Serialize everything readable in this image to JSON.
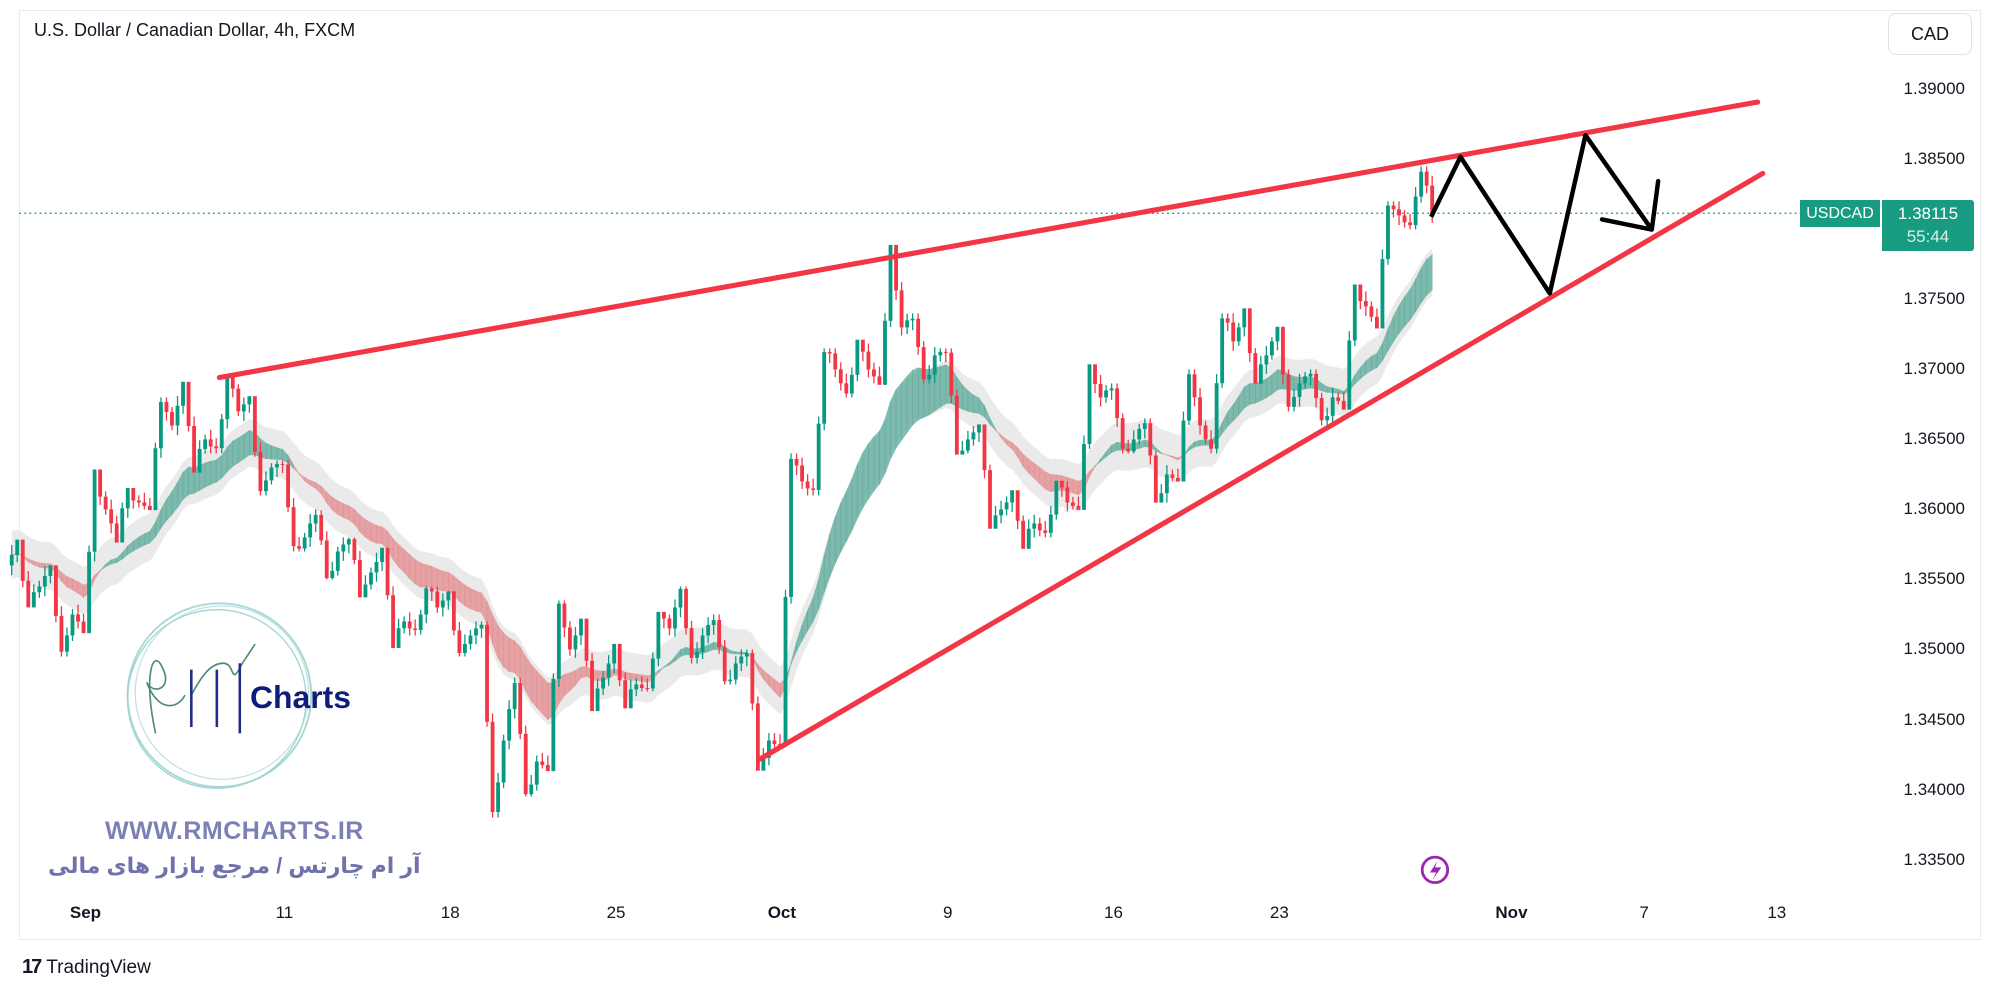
{
  "header": {
    "title": "U.S. Dollar / Canadian Dollar, 4h, FXCM",
    "currency_button": "CAD"
  },
  "last_price": {
    "symbol": "USDCAD",
    "price": "1.38115",
    "countdown": "55:44"
  },
  "watermark": {
    "logo_text": "RM Charts",
    "website": "WWW.RMCHARTS.IR",
    "tagline": "آر ام چارتس / مرجع بازار های مالی"
  },
  "footer": {
    "brand": "TradingView"
  },
  "colors": {
    "up": "#089981",
    "down": "#f23645",
    "trendline": "#f23645",
    "projection": "#000000",
    "badge": "#179b81",
    "ribbon_up": "#5aa99a",
    "ribbon_down": "#e48a8d",
    "band": "#e3e3e3"
  },
  "chart_data": {
    "type": "candlestick",
    "timeframe": "4h",
    "ylim": [
      1.332,
      1.3925
    ],
    "y_ticks": [
      "1.39000",
      "1.38500",
      "1.38000",
      "1.37500",
      "1.37000",
      "1.36500",
      "1.36000",
      "1.35500",
      "1.35000",
      "1.34500",
      "1.34000",
      "1.33500"
    ],
    "x_ticks": [
      "Sep",
      "11",
      "18",
      "25",
      "Oct",
      "9",
      "16",
      "23",
      "Nov",
      "7",
      "13"
    ],
    "daily_ohlc": [
      {
        "date": "Aug 30",
        "o": 1.356,
        "h": 1.3575,
        "l": 1.353,
        "c": 1.3545
      },
      {
        "date": "Aug 31",
        "o": 1.3545,
        "h": 1.356,
        "l": 1.3495,
        "c": 1.3525
      },
      {
        "date": "Sep 1",
        "o": 1.3525,
        "h": 1.3625,
        "l": 1.3515,
        "c": 1.36
      },
      {
        "date": "Sep 4",
        "o": 1.36,
        "h": 1.3615,
        "l": 1.358,
        "c": 1.3605
      },
      {
        "date": "Sep 5",
        "o": 1.3605,
        "h": 1.368,
        "l": 1.36,
        "c": 1.366
      },
      {
        "date": "Sep 6",
        "o": 1.366,
        "h": 1.3688,
        "l": 1.363,
        "c": 1.365
      },
      {
        "date": "Sep 7",
        "o": 1.365,
        "h": 1.3695,
        "l": 1.364,
        "c": 1.367
      },
      {
        "date": "Sep 8",
        "o": 1.367,
        "h": 1.368,
        "l": 1.361,
        "c": 1.363
      },
      {
        "date": "Sep 11",
        "o": 1.363,
        "h": 1.3635,
        "l": 1.357,
        "c": 1.358
      },
      {
        "date": "Sep 12",
        "o": 1.358,
        "h": 1.36,
        "l": 1.355,
        "c": 1.357
      },
      {
        "date": "Sep 13",
        "o": 1.357,
        "h": 1.358,
        "l": 1.354,
        "c": 1.3555
      },
      {
        "date": "Sep 14",
        "o": 1.3555,
        "h": 1.357,
        "l": 1.3505,
        "c": 1.352
      },
      {
        "date": "Sep 15",
        "o": 1.352,
        "h": 1.3545,
        "l": 1.351,
        "c": 1.353
      },
      {
        "date": "Sep 18",
        "o": 1.353,
        "h": 1.354,
        "l": 1.3495,
        "c": 1.351
      },
      {
        "date": "Sep 19",
        "o": 1.351,
        "h": 1.352,
        "l": 1.338,
        "c": 1.3435
      },
      {
        "date": "Sep 20",
        "o": 1.3435,
        "h": 1.348,
        "l": 1.3395,
        "c": 1.342
      },
      {
        "date": "Sep 21",
        "o": 1.342,
        "h": 1.3535,
        "l": 1.3415,
        "c": 1.35
      },
      {
        "date": "Sep 22",
        "o": 1.35,
        "h": 1.352,
        "l": 1.346,
        "c": 1.348
      },
      {
        "date": "Sep 25",
        "o": 1.348,
        "h": 1.35,
        "l": 1.346,
        "c": 1.3475
      },
      {
        "date": "Sep 26",
        "o": 1.3475,
        "h": 1.3525,
        "l": 1.347,
        "c": 1.3515
      },
      {
        "date": "Sep 27",
        "o": 1.3515,
        "h": 1.3545,
        "l": 1.349,
        "c": 1.351
      },
      {
        "date": "Sep 28",
        "o": 1.351,
        "h": 1.3525,
        "l": 1.3475,
        "c": 1.349
      },
      {
        "date": "Sep 29",
        "o": 1.349,
        "h": 1.35,
        "l": 1.3415,
        "c": 1.3435
      },
      {
        "date": "Oct 2",
        "o": 1.3435,
        "h": 1.364,
        "l": 1.343,
        "c": 1.362
      },
      {
        "date": "Oct 3",
        "o": 1.362,
        "h": 1.3715,
        "l": 1.361,
        "c": 1.37
      },
      {
        "date": "Oct 4",
        "o": 1.37,
        "h": 1.372,
        "l": 1.368,
        "c": 1.37
      },
      {
        "date": "Oct 5",
        "o": 1.37,
        "h": 1.3785,
        "l": 1.369,
        "c": 1.373
      },
      {
        "date": "Oct 6",
        "o": 1.373,
        "h": 1.374,
        "l": 1.369,
        "c": 1.371
      },
      {
        "date": "Oct 9",
        "o": 1.371,
        "h": 1.3715,
        "l": 1.364,
        "c": 1.365
      },
      {
        "date": "Oct 10",
        "o": 1.365,
        "h": 1.366,
        "l": 1.359,
        "c": 1.36
      },
      {
        "date": "Oct 11",
        "o": 1.36,
        "h": 1.361,
        "l": 1.3575,
        "c": 1.359
      },
      {
        "date": "Oct 12",
        "o": 1.359,
        "h": 1.362,
        "l": 1.358,
        "c": 1.3605
      },
      {
        "date": "Oct 13",
        "o": 1.3605,
        "h": 1.37,
        "l": 1.36,
        "c": 1.368
      },
      {
        "date": "Oct 16",
        "o": 1.368,
        "h": 1.369,
        "l": 1.364,
        "c": 1.365
      },
      {
        "date": "Oct 17",
        "o": 1.365,
        "h": 1.3665,
        "l": 1.3605,
        "c": 1.3625
      },
      {
        "date": "Oct 18",
        "o": 1.3625,
        "h": 1.37,
        "l": 1.362,
        "c": 1.366
      },
      {
        "date": "Oct 19",
        "o": 1.366,
        "h": 1.374,
        "l": 1.364,
        "c": 1.372
      },
      {
        "date": "Oct 20",
        "o": 1.372,
        "h": 1.374,
        "l": 1.369,
        "c": 1.371
      },
      {
        "date": "Oct 23",
        "o": 1.371,
        "h": 1.373,
        "l": 1.367,
        "c": 1.369
      },
      {
        "date": "Oct 24",
        "o": 1.369,
        "h": 1.37,
        "l": 1.366,
        "c": 1.368
      },
      {
        "date": "Oct 25",
        "o": 1.368,
        "h": 1.376,
        "l": 1.3675,
        "c": 1.3745
      },
      {
        "date": "Oct 26",
        "o": 1.3745,
        "h": 1.382,
        "l": 1.373,
        "c": 1.381
      },
      {
        "date": "Oct 27",
        "o": 1.381,
        "h": 1.3845,
        "l": 1.38,
        "c": 1.38115
      }
    ]
  }
}
